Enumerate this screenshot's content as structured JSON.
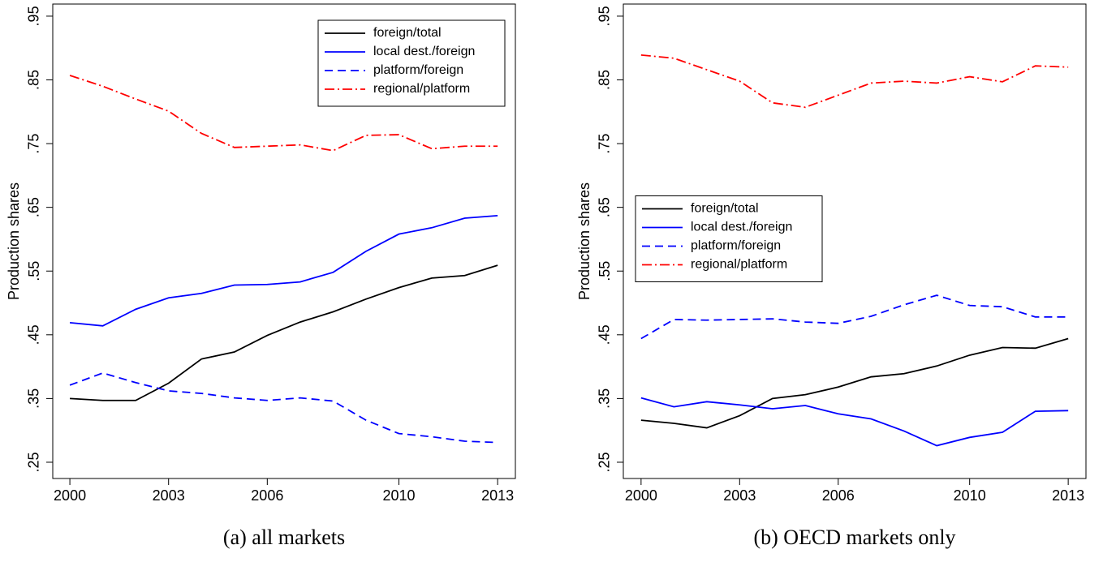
{
  "chart_data": [
    {
      "type": "line",
      "caption": "(a) all markets",
      "ylabel": "Production shares",
      "x": [
        2000,
        2001,
        2002,
        2003,
        2004,
        2005,
        2006,
        2007,
        2008,
        2009,
        2010,
        2011,
        2012,
        2013
      ],
      "xlim": [
        1999.48,
        2013.54
      ],
      "xticks": [
        2000,
        2003,
        2006,
        2010,
        2013
      ],
      "ylim": [
        0.2245,
        0.969
      ],
      "yticks": [
        {
          "value": 0.25,
          "label": ".25"
        },
        {
          "value": 0.35,
          "label": ".35"
        },
        {
          "value": 0.45,
          "label": ".45"
        },
        {
          "value": 0.55,
          "label": ".55"
        },
        {
          "value": 0.65,
          "label": ".65"
        },
        {
          "value": 0.75,
          "label": ".75"
        },
        {
          "value": 0.85,
          "label": ".85"
        },
        {
          "value": 0.95,
          "label": ".95"
        }
      ],
      "legend": "top-right",
      "series": [
        {
          "name": "foreign/total",
          "color": "#000000",
          "dash": "solid",
          "values": [
            0.35,
            0.347,
            0.347,
            0.374,
            0.412,
            0.423,
            0.449,
            0.47,
            0.486,
            0.506,
            0.524,
            0.539,
            0.543,
            0.559
          ]
        },
        {
          "name": "local dest./foreign",
          "color": "#0000ff",
          "dash": "solid",
          "values": [
            0.469,
            0.464,
            0.49,
            0.508,
            0.515,
            0.528,
            0.529,
            0.533,
            0.548,
            0.581,
            0.608,
            0.618,
            0.633,
            0.637
          ]
        },
        {
          "name": "platform/foreign",
          "color": "#0000ff",
          "dash": "dash",
          "values": [
            0.371,
            0.39,
            0.375,
            0.362,
            0.358,
            0.351,
            0.347,
            0.351,
            0.346,
            0.316,
            0.295,
            0.29,
            0.283,
            0.281
          ]
        },
        {
          "name": "regional/platform",
          "color": "#ff0000",
          "dash": "dashdot",
          "values": [
            0.857,
            0.84,
            0.82,
            0.801,
            0.766,
            0.744,
            0.746,
            0.748,
            0.739,
            0.763,
            0.764,
            0.742,
            0.746,
            0.746
          ]
        }
      ]
    },
    {
      "type": "line",
      "caption": "(b) OECD markets only",
      "ylabel": "Production shares",
      "x": [
        2000,
        2001,
        2002,
        2003,
        2004,
        2005,
        2006,
        2007,
        2008,
        2009,
        2010,
        2011,
        2012,
        2013
      ],
      "xlim": [
        1999.46,
        2013.54
      ],
      "xticks": [
        2000,
        2003,
        2006,
        2010,
        2013
      ],
      "ylim": [
        0.2245,
        0.969
      ],
      "yticks": [
        {
          "value": 0.25,
          "label": ".25"
        },
        {
          "value": 0.35,
          "label": ".35"
        },
        {
          "value": 0.45,
          "label": ".45"
        },
        {
          "value": 0.55,
          "label": ".55"
        },
        {
          "value": 0.65,
          "label": ".65"
        },
        {
          "value": 0.75,
          "label": ".75"
        },
        {
          "value": 0.85,
          "label": ".85"
        },
        {
          "value": 0.95,
          "label": ".95"
        }
      ],
      "legend": "center-left",
      "series": [
        {
          "name": "foreign/total",
          "color": "#000000",
          "dash": "solid",
          "values": [
            0.316,
            0.311,
            0.304,
            0.323,
            0.35,
            0.356,
            0.368,
            0.384,
            0.389,
            0.401,
            0.418,
            0.43,
            0.429,
            0.444
          ]
        },
        {
          "name": "local dest./foreign",
          "color": "#0000ff",
          "dash": "solid",
          "values": [
            0.351,
            0.337,
            0.345,
            0.34,
            0.334,
            0.339,
            0.326,
            0.318,
            0.299,
            0.276,
            0.289,
            0.297,
            0.33,
            0.331
          ]
        },
        {
          "name": "platform/foreign",
          "color": "#0000ff",
          "dash": "dash",
          "values": [
            0.444,
            0.474,
            0.473,
            0.474,
            0.475,
            0.47,
            0.468,
            0.479,
            0.497,
            0.512,
            0.496,
            0.494,
            0.478,
            0.478
          ]
        },
        {
          "name": "regional/platform",
          "color": "#ff0000",
          "dash": "dashdot",
          "values": [
            0.889,
            0.884,
            0.866,
            0.848,
            0.814,
            0.807,
            0.826,
            0.845,
            0.848,
            0.845,
            0.855,
            0.847,
            0.872,
            0.87
          ]
        }
      ]
    }
  ]
}
